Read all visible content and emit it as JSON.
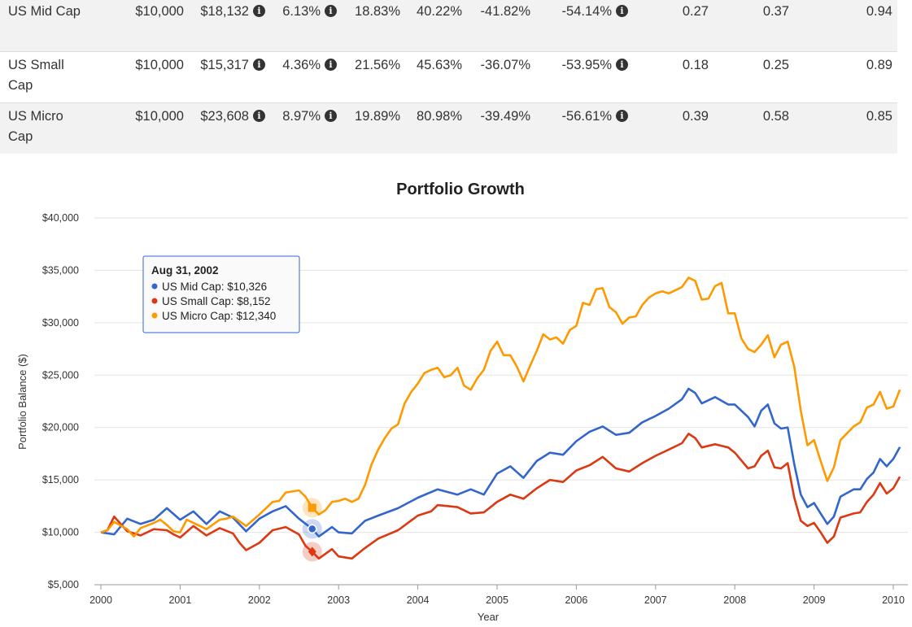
{
  "table": {
    "rows": [
      {
        "name": "US Mid Cap",
        "initial": "$10,000",
        "final": "$18,132",
        "cagr": "6.13%",
        "stdev": "18.83%",
        "best_year": "40.22%",
        "worst_year": "-41.82%",
        "max_drawdown": "-54.14%",
        "sharpe": "0.27",
        "sortino": "0.37",
        "correlation": "0.94"
      },
      {
        "name": "US Small Cap",
        "initial": "$10,000",
        "final": "$15,317",
        "cagr": "4.36%",
        "stdev": "21.56%",
        "best_year": "45.63%",
        "worst_year": "-36.07%",
        "max_drawdown": "-53.95%",
        "sharpe": "0.18",
        "sortino": "0.25",
        "correlation": "0.89"
      },
      {
        "name": "US Micro Cap",
        "initial": "$10,000",
        "final": "$23,608",
        "cagr": "8.97%",
        "stdev": "19.89%",
        "best_year": "80.98%",
        "worst_year": "-39.49%",
        "max_drawdown": "-56.61%",
        "sharpe": "0.39",
        "sortino": "0.58",
        "correlation": "0.85"
      }
    ]
  },
  "info_icon": "info-circle-icon",
  "chart_data": {
    "type": "line",
    "title": "Portfolio Growth",
    "xlabel": "Year",
    "ylabel": "Portfolio Balance ($)",
    "ylim": [
      5000,
      40000
    ],
    "xlim": [
      2000,
      2010.1
    ],
    "y_ticks": [
      5000,
      10000,
      15000,
      20000,
      25000,
      30000,
      35000,
      40000
    ],
    "y_tick_labels": [
      "$5,000",
      "$10,000",
      "$15,000",
      "$20,000",
      "$25,000",
      "$30,000",
      "$35,000",
      "$40,000"
    ],
    "x_ticks": [
      2000,
      2001,
      2002,
      2003,
      2004,
      2005,
      2006,
      2007,
      2008,
      2009,
      2010
    ],
    "x_tick_labels": [
      "2000",
      "2001",
      "2002",
      "2003",
      "2004",
      "2005",
      "2006",
      "2007",
      "2008",
      "2009",
      "2010"
    ],
    "grid": true,
    "series": [
      {
        "name": "US Mid Cap",
        "color": "#3366cc",
        "marker": "circle",
        "points": [
          [
            2000,
            10000
          ],
          [
            2000.167,
            9800
          ],
          [
            2000.333,
            11300
          ],
          [
            2000.5,
            10800
          ],
          [
            2000.667,
            11200
          ],
          [
            2000.833,
            12300
          ],
          [
            2001,
            11200
          ],
          [
            2001.167,
            12000
          ],
          [
            2001.333,
            10800
          ],
          [
            2001.5,
            12000
          ],
          [
            2001.667,
            11400
          ],
          [
            2001.833,
            10100
          ],
          [
            2002,
            11300
          ],
          [
            2002.167,
            12000
          ],
          [
            2002.333,
            12500
          ],
          [
            2002.5,
            11300
          ],
          [
            2002.667,
            10326
          ],
          [
            2002.75,
            9600
          ],
          [
            2002.917,
            10500
          ],
          [
            2003,
            10000
          ],
          [
            2003.167,
            9900
          ],
          [
            2003.333,
            11100
          ],
          [
            2003.5,
            11600
          ],
          [
            2003.75,
            12300
          ],
          [
            2004,
            13300
          ],
          [
            2004.25,
            14100
          ],
          [
            2004.5,
            13600
          ],
          [
            2004.667,
            14100
          ],
          [
            2004.833,
            13600
          ],
          [
            2005,
            15600
          ],
          [
            2005.167,
            16300
          ],
          [
            2005.333,
            15200
          ],
          [
            2005.5,
            16800
          ],
          [
            2005.667,
            17600
          ],
          [
            2005.833,
            17400
          ],
          [
            2006,
            18700
          ],
          [
            2006.167,
            19600
          ],
          [
            2006.333,
            20100
          ],
          [
            2006.5,
            19300
          ],
          [
            2006.667,
            19500
          ],
          [
            2006.833,
            20500
          ],
          [
            2007,
            21100
          ],
          [
            2007.167,
            21800
          ],
          [
            2007.333,
            22700
          ],
          [
            2007.417,
            23700
          ],
          [
            2007.5,
            23300
          ],
          [
            2007.583,
            22300
          ],
          [
            2007.75,
            22900
          ],
          [
            2007.917,
            22200
          ],
          [
            2008,
            22200
          ],
          [
            2008.167,
            21000
          ],
          [
            2008.25,
            20100
          ],
          [
            2008.333,
            21600
          ],
          [
            2008.417,
            22200
          ],
          [
            2008.5,
            20400
          ],
          [
            2008.583,
            19900
          ],
          [
            2008.667,
            20000
          ],
          [
            2008.75,
            16500
          ],
          [
            2008.833,
            13600
          ],
          [
            2008.917,
            12400
          ],
          [
            2009,
            12800
          ],
          [
            2009.083,
            11800
          ],
          [
            2009.167,
            10800
          ],
          [
            2009.25,
            11500
          ],
          [
            2009.333,
            13400
          ],
          [
            2009.5,
            14100
          ],
          [
            2009.583,
            14100
          ],
          [
            2009.667,
            15100
          ],
          [
            2009.75,
            15700
          ],
          [
            2009.833,
            17000
          ],
          [
            2009.917,
            16300
          ],
          [
            2010,
            17000
          ],
          [
            2010.083,
            18132
          ]
        ]
      },
      {
        "name": "US Small Cap",
        "color": "#dc3912",
        "marker": "diamond",
        "points": [
          [
            2000,
            10000
          ],
          [
            2000.083,
            10200
          ],
          [
            2000.167,
            11500
          ],
          [
            2000.333,
            10100
          ],
          [
            2000.5,
            9700
          ],
          [
            2000.667,
            10300
          ],
          [
            2000.833,
            10200
          ],
          [
            2000.917,
            9800
          ],
          [
            2001,
            9500
          ],
          [
            2001.167,
            10600
          ],
          [
            2001.333,
            9700
          ],
          [
            2001.5,
            10400
          ],
          [
            2001.667,
            9900
          ],
          [
            2001.75,
            9000
          ],
          [
            2001.833,
            8300
          ],
          [
            2002,
            9000
          ],
          [
            2002.167,
            10200
          ],
          [
            2002.333,
            10500
          ],
          [
            2002.5,
            9800
          ],
          [
            2002.583,
            8700
          ],
          [
            2002.667,
            8152
          ],
          [
            2002.75,
            7500
          ],
          [
            2002.917,
            8400
          ],
          [
            2003,
            7700
          ],
          [
            2003.167,
            7500
          ],
          [
            2003.333,
            8500
          ],
          [
            2003.5,
            9400
          ],
          [
            2003.75,
            10200
          ],
          [
            2004,
            11600
          ],
          [
            2004.167,
            12000
          ],
          [
            2004.25,
            12600
          ],
          [
            2004.5,
            12400
          ],
          [
            2004.667,
            11800
          ],
          [
            2004.833,
            11900
          ],
          [
            2005,
            12900
          ],
          [
            2005.167,
            13600
          ],
          [
            2005.333,
            13200
          ],
          [
            2005.5,
            14200
          ],
          [
            2005.667,
            15000
          ],
          [
            2005.833,
            14800
          ],
          [
            2006,
            15900
          ],
          [
            2006.167,
            16400
          ],
          [
            2006.333,
            17200
          ],
          [
            2006.5,
            16100
          ],
          [
            2006.667,
            15800
          ],
          [
            2006.833,
            16600
          ],
          [
            2007,
            17300
          ],
          [
            2007.167,
            17900
          ],
          [
            2007.333,
            18500
          ],
          [
            2007.417,
            19400
          ],
          [
            2007.5,
            19000
          ],
          [
            2007.583,
            18100
          ],
          [
            2007.75,
            18400
          ],
          [
            2007.917,
            18100
          ],
          [
            2008,
            17600
          ],
          [
            2008.167,
            16100
          ],
          [
            2008.25,
            16300
          ],
          [
            2008.333,
            17300
          ],
          [
            2008.417,
            17800
          ],
          [
            2008.5,
            16200
          ],
          [
            2008.583,
            16100
          ],
          [
            2008.667,
            16600
          ],
          [
            2008.75,
            13300
          ],
          [
            2008.833,
            11100
          ],
          [
            2008.917,
            10600
          ],
          [
            2009,
            10900
          ],
          [
            2009.083,
            10000
          ],
          [
            2009.167,
            9000
          ],
          [
            2009.25,
            9600
          ],
          [
            2009.333,
            11400
          ],
          [
            2009.5,
            11800
          ],
          [
            2009.583,
            11900
          ],
          [
            2009.667,
            12900
          ],
          [
            2009.75,
            13600
          ],
          [
            2009.833,
            14700
          ],
          [
            2009.917,
            13700
          ],
          [
            2010,
            14200
          ],
          [
            2010.083,
            15317
          ]
        ]
      },
      {
        "name": "US Micro Cap",
        "color": "#ff9900",
        "marker": "square",
        "points": [
          [
            2000,
            10000
          ],
          [
            2000.083,
            10200
          ],
          [
            2000.167,
            11000
          ],
          [
            2000.333,
            10300
          ],
          [
            2000.417,
            9600
          ],
          [
            2000.5,
            10400
          ],
          [
            2000.667,
            10900
          ],
          [
            2000.75,
            11200
          ],
          [
            2000.833,
            10700
          ],
          [
            2000.917,
            10100
          ],
          [
            2001,
            10000
          ],
          [
            2001.083,
            11200
          ],
          [
            2001.25,
            10600
          ],
          [
            2001.333,
            10300
          ],
          [
            2001.5,
            11200
          ],
          [
            2001.583,
            11300
          ],
          [
            2001.667,
            11500
          ],
          [
            2001.833,
            10600
          ],
          [
            2002,
            11700
          ],
          [
            2002.167,
            12900
          ],
          [
            2002.25,
            13000
          ],
          [
            2002.333,
            13800
          ],
          [
            2002.5,
            14000
          ],
          [
            2002.583,
            13400
          ],
          [
            2002.667,
            12340
          ],
          [
            2002.75,
            11700
          ],
          [
            2002.833,
            12100
          ],
          [
            2002.917,
            12900
          ],
          [
            2003,
            13000
          ],
          [
            2003.083,
            13200
          ],
          [
            2003.167,
            12900
          ],
          [
            2003.25,
            13200
          ],
          [
            2003.333,
            14500
          ],
          [
            2003.417,
            16500
          ],
          [
            2003.5,
            17900
          ],
          [
            2003.583,
            19000
          ],
          [
            2003.667,
            19900
          ],
          [
            2003.75,
            20300
          ],
          [
            2003.833,
            22300
          ],
          [
            2003.917,
            23400
          ],
          [
            2004,
            24200
          ],
          [
            2004.083,
            25200
          ],
          [
            2004.167,
            25500
          ],
          [
            2004.25,
            25700
          ],
          [
            2004.333,
            24800
          ],
          [
            2004.417,
            25000
          ],
          [
            2004.5,
            25700
          ],
          [
            2004.583,
            24000
          ],
          [
            2004.667,
            23600
          ],
          [
            2004.75,
            24700
          ],
          [
            2004.833,
            25500
          ],
          [
            2004.917,
            27300
          ],
          [
            2005,
            28200
          ],
          [
            2005.083,
            26900
          ],
          [
            2005.167,
            26900
          ],
          [
            2005.25,
            25800
          ],
          [
            2005.333,
            24400
          ],
          [
            2005.417,
            25900
          ],
          [
            2005.5,
            27300
          ],
          [
            2005.583,
            28900
          ],
          [
            2005.667,
            28400
          ],
          [
            2005.75,
            28600
          ],
          [
            2005.833,
            28000
          ],
          [
            2005.917,
            29300
          ],
          [
            2006,
            29700
          ],
          [
            2006.083,
            31900
          ],
          [
            2006.167,
            31700
          ],
          [
            2006.25,
            33200
          ],
          [
            2006.333,
            33300
          ],
          [
            2006.417,
            31500
          ],
          [
            2006.5,
            31000
          ],
          [
            2006.583,
            29900
          ],
          [
            2006.667,
            30500
          ],
          [
            2006.75,
            30600
          ],
          [
            2006.833,
            31700
          ],
          [
            2006.917,
            32400
          ],
          [
            2007,
            32800
          ],
          [
            2007.083,
            33000
          ],
          [
            2007.167,
            32800
          ],
          [
            2007.25,
            33100
          ],
          [
            2007.333,
            33400
          ],
          [
            2007.417,
            34300
          ],
          [
            2007.5,
            34000
          ],
          [
            2007.583,
            32200
          ],
          [
            2007.667,
            32300
          ],
          [
            2007.75,
            33500
          ],
          [
            2007.833,
            33800
          ],
          [
            2007.917,
            30900
          ],
          [
            2008,
            30900
          ],
          [
            2008.083,
            28500
          ],
          [
            2008.167,
            27500
          ],
          [
            2008.25,
            27200
          ],
          [
            2008.333,
            27900
          ],
          [
            2008.417,
            28800
          ],
          [
            2008.5,
            26700
          ],
          [
            2008.583,
            27900
          ],
          [
            2008.667,
            28200
          ],
          [
            2008.75,
            25800
          ],
          [
            2008.833,
            21600
          ],
          [
            2008.917,
            18300
          ],
          [
            2009,
            18800
          ],
          [
            2009.083,
            16800
          ],
          [
            2009.167,
            14900
          ],
          [
            2009.25,
            16200
          ],
          [
            2009.333,
            18800
          ],
          [
            2009.5,
            20100
          ],
          [
            2009.583,
            20500
          ],
          [
            2009.667,
            21900
          ],
          [
            2009.75,
            22200
          ],
          [
            2009.833,
            23400
          ],
          [
            2009.917,
            21800
          ],
          [
            2010,
            22000
          ],
          [
            2010.083,
            23608
          ]
        ]
      }
    ],
    "tooltip": {
      "date": "Aug 31, 2002",
      "x": 2002.667,
      "lines": [
        "US Mid Cap: $10,326",
        "US Small Cap: $8,152",
        "US Micro Cap: $12,340"
      ]
    }
  }
}
